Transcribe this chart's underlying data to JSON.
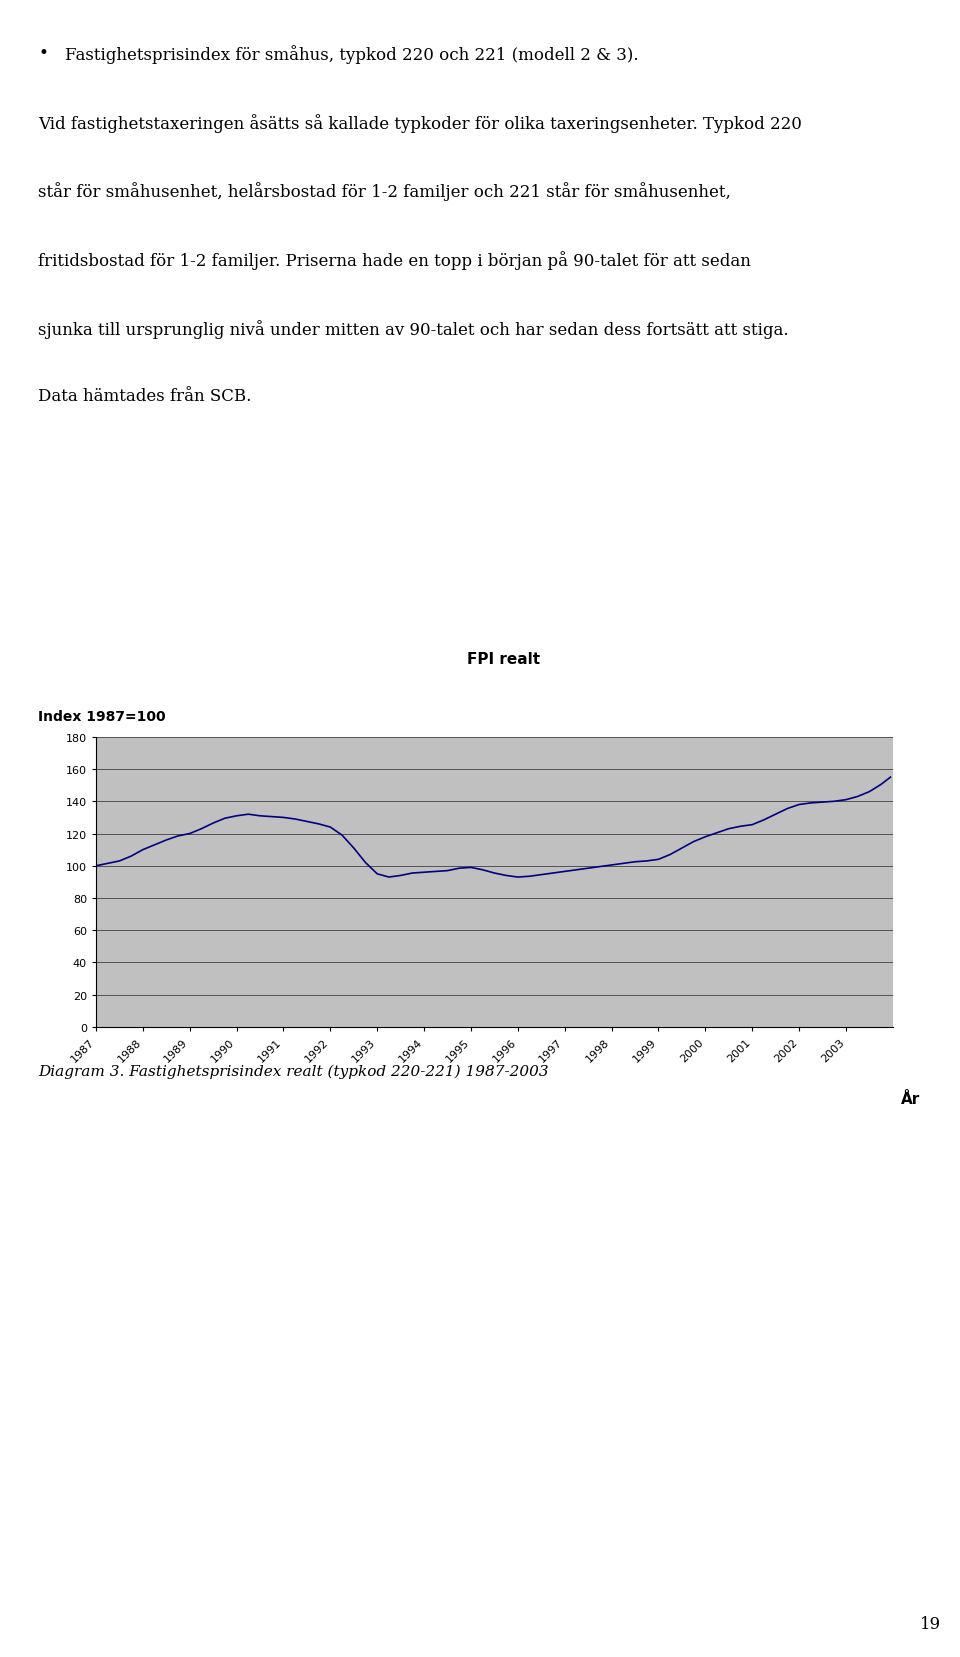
{
  "title": "FPI realt",
  "ylabel": "Index 1987=100",
  "xlabel": "År",
  "diagram_caption": "Diagram 3. Fastighetsprisindex realt (typkod 220-221) 1987-2003",
  "body_text_bullet": "Fastighetsprisindex för småhus, typkod 220 och 221 (modell 2 & 3).",
  "body_line2": "Vid fastighetstaxeringen åsätts så kallade typkoder för olika taxeringsenheter. Typkod 220",
  "body_line3": "står för småhusenhet, helårsbostad för 1-2 familjer och 221 står för småhusenhet,",
  "body_line4": "fritidsbostad för 1-2 familjer. Priserna hade en topp i början på 90-talet för att sedan",
  "body_line5": "sjunka till ursprunglig nivå under mitten av 90-talet och har sedan dess fortsätt att stiga.",
  "body_line6": "Data hämtades från SCB.",
  "ylim": [
    0,
    180
  ],
  "yticks": [
    0,
    20,
    40,
    60,
    80,
    100,
    120,
    140,
    160,
    180
  ],
  "fpi_data": [
    [
      1987.0,
      100.0
    ],
    [
      1987.25,
      101.5
    ],
    [
      1987.5,
      103.0
    ],
    [
      1987.75,
      106.0
    ],
    [
      1988.0,
      110.0
    ],
    [
      1988.25,
      113.0
    ],
    [
      1988.5,
      116.0
    ],
    [
      1988.75,
      118.5
    ],
    [
      1989.0,
      120.0
    ],
    [
      1989.25,
      123.0
    ],
    [
      1989.5,
      126.5
    ],
    [
      1989.75,
      129.5
    ],
    [
      1990.0,
      131.0
    ],
    [
      1990.25,
      132.0
    ],
    [
      1990.5,
      131.0
    ],
    [
      1990.75,
      130.5
    ],
    [
      1991.0,
      130.0
    ],
    [
      1991.25,
      129.0
    ],
    [
      1991.5,
      127.5
    ],
    [
      1991.75,
      126.0
    ],
    [
      1992.0,
      124.0
    ],
    [
      1992.25,
      119.0
    ],
    [
      1992.5,
      111.0
    ],
    [
      1992.75,
      102.0
    ],
    [
      1993.0,
      95.0
    ],
    [
      1993.25,
      93.0
    ],
    [
      1993.5,
      94.0
    ],
    [
      1993.75,
      95.5
    ],
    [
      1994.0,
      96.0
    ],
    [
      1994.25,
      96.5
    ],
    [
      1994.5,
      97.0
    ],
    [
      1994.75,
      98.5
    ],
    [
      1995.0,
      99.0
    ],
    [
      1995.25,
      97.5
    ],
    [
      1995.5,
      95.5
    ],
    [
      1995.75,
      94.0
    ],
    [
      1996.0,
      93.0
    ],
    [
      1996.25,
      93.5
    ],
    [
      1996.5,
      94.5
    ],
    [
      1996.75,
      95.5
    ],
    [
      1997.0,
      96.5
    ],
    [
      1997.25,
      97.5
    ],
    [
      1997.5,
      98.5
    ],
    [
      1997.75,
      99.5
    ],
    [
      1998.0,
      100.5
    ],
    [
      1998.25,
      101.5
    ],
    [
      1998.5,
      102.5
    ],
    [
      1998.75,
      103.0
    ],
    [
      1999.0,
      104.0
    ],
    [
      1999.25,
      107.0
    ],
    [
      1999.5,
      111.0
    ],
    [
      1999.75,
      115.0
    ],
    [
      2000.0,
      118.0
    ],
    [
      2000.25,
      120.5
    ],
    [
      2000.5,
      123.0
    ],
    [
      2000.75,
      124.5
    ],
    [
      2001.0,
      125.5
    ],
    [
      2001.25,
      128.5
    ],
    [
      2001.5,
      132.0
    ],
    [
      2001.75,
      135.5
    ],
    [
      2002.0,
      138.0
    ],
    [
      2002.25,
      139.0
    ],
    [
      2002.5,
      139.5
    ],
    [
      2002.75,
      140.0
    ],
    [
      2003.0,
      141.0
    ],
    [
      2003.25,
      143.0
    ],
    [
      2003.5,
      146.0
    ],
    [
      2003.75,
      150.5
    ],
    [
      2003.95,
      155.0
    ]
  ],
  "line_color": "#000080",
  "plot_bg": "#C0C0C0",
  "page_number": "19",
  "title_fontsize": 11,
  "axis_label_fontsize": 9,
  "tick_fontsize": 8,
  "body_fontsize": 12,
  "caption_fontsize": 11
}
